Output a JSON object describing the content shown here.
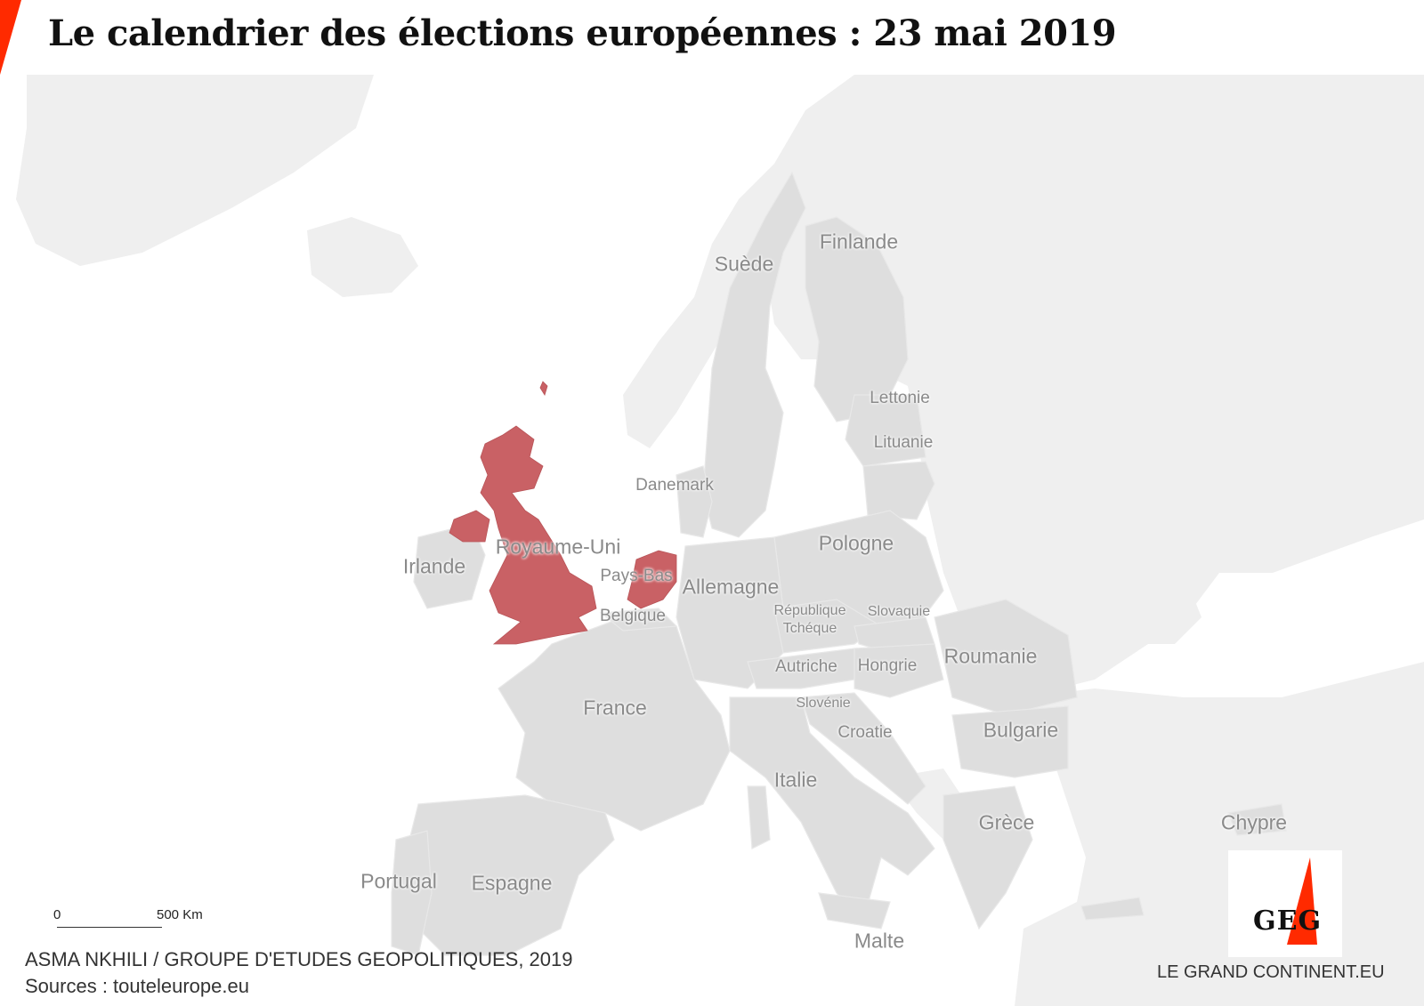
{
  "title": "Le calendrier des élections européennes : 23 mai 2019",
  "colors": {
    "highlight": "#c96165",
    "eu_country": "#dedede",
    "non_eu_land": "#efefef",
    "sea": "#ffffff",
    "accent_red": "#ff2a00"
  },
  "highlighted_countries": [
    "Royaume-Uni",
    "Pays-Bas"
  ],
  "labels": {
    "suede": "Suède",
    "finlande": "Finlande",
    "lettonie": "Lettonie",
    "lituanie": "Lituanie",
    "danemark": "Danemark",
    "royaume_uni": "Royaume-Uni",
    "irlande": "Irlande",
    "pays_bas": "Pays-Bas",
    "allemagne": "Allemagne",
    "pologne": "Pologne",
    "belgique": "Belgique",
    "republique_tcheque": "République Tchéque",
    "slovaquie": "Slovaquie",
    "autriche": "Autriche",
    "hongrie": "Hongrie",
    "roumanie": "Roumanie",
    "france": "France",
    "slovenie": "Slovénie",
    "croatie": "Croatie",
    "bulgarie": "Bulgarie",
    "italie": "Italie",
    "grece": "Grèce",
    "chypre": "Chypre",
    "portugal": "Portugal",
    "espagne": "Espagne",
    "malte": "Malte"
  },
  "scale": {
    "start": "0",
    "end": "500 Km"
  },
  "credit": {
    "author": "ASMA NKHILI / GROUPE D'ETUDES GEOPOLITIQUES, 2019",
    "sources": "Sources : touteleurope.eu"
  },
  "logo": {
    "text": "GEG"
  },
  "site": "LE GRAND CONTINENT.EU"
}
